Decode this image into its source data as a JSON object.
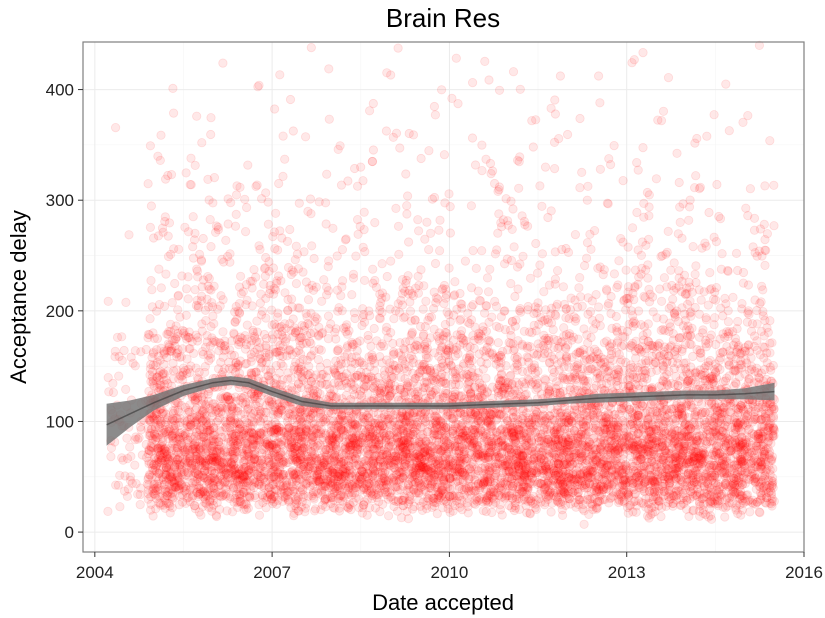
{
  "chart_data": {
    "type": "scatter",
    "title": "Brain Res",
    "xlabel": "Date accepted",
    "ylabel": "Acceptance delay",
    "xlim": [
      2003.8,
      2016.0
    ],
    "ylim": [
      -18,
      443
    ],
    "x_ticks": [
      2004,
      2007,
      2010,
      2013,
      2016
    ],
    "y_ticks": [
      0,
      100,
      200,
      300,
      400
    ],
    "grid": true,
    "legend": "none",
    "point_color": "#ff0000",
    "point_opacity": 0.09,
    "point_count_approx": 9000,
    "x_range_points": [
      2004.2,
      2015.5
    ],
    "smooth": {
      "x": [
        2004.2,
        2004.6,
        2005.0,
        2005.5,
        2006.0,
        2006.3,
        2006.6,
        2007.0,
        2007.5,
        2008.0,
        2008.5,
        2009.0,
        2009.5,
        2010.0,
        2010.5,
        2011.0,
        2011.5,
        2012.0,
        2012.5,
        2013.0,
        2013.5,
        2014.0,
        2014.5,
        2015.0,
        2015.5
      ],
      "y": [
        97,
        107,
        117,
        128,
        135,
        137,
        135,
        127,
        118,
        114,
        114,
        114,
        114,
        114,
        115,
        116,
        117,
        119,
        121,
        122,
        123,
        124,
        124,
        125,
        127
      ],
      "ci_low": [
        78,
        95,
        110,
        123,
        131,
        133,
        131,
        123,
        114,
        111,
        111,
        111,
        111,
        111,
        112,
        113,
        114,
        116,
        117,
        118,
        119,
        120,
        120,
        120,
        119
      ],
      "ci_high": [
        116,
        119,
        124,
        133,
        139,
        141,
        139,
        131,
        122,
        117,
        117,
        117,
        117,
        117,
        118,
        119,
        120,
        122,
        125,
        126,
        127,
        128,
        128,
        130,
        135
      ],
      "line_color": "#333333",
      "band_color": "#777777"
    }
  }
}
